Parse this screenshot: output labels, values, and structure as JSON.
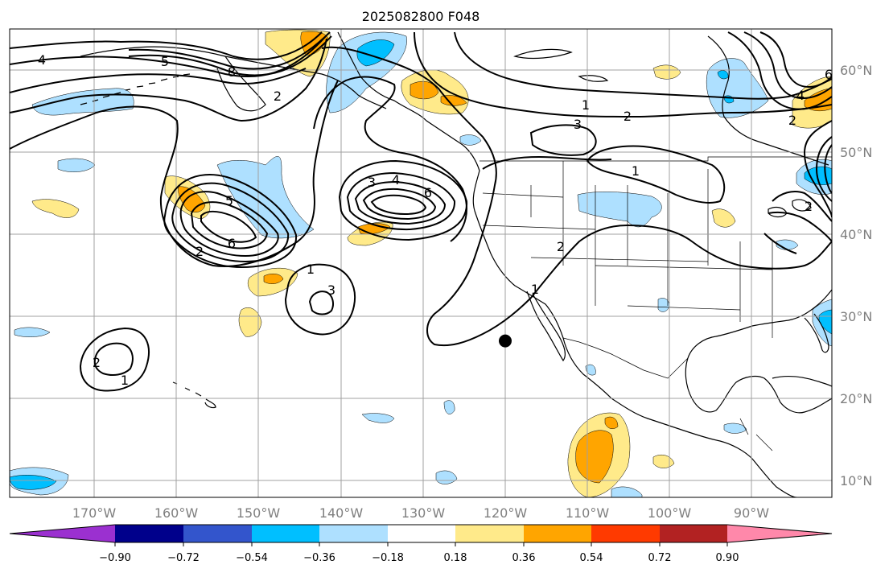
{
  "title": "2025082800 F048",
  "map": {
    "lon_labels": [
      "170°W",
      "160°W",
      "150°W",
      "140°W",
      "130°W",
      "120°W",
      "110°W",
      "100°W",
      "90°W"
    ],
    "lat_labels": [
      "60°N",
      "50°N",
      "40°N",
      "30°N",
      "20°N",
      "10°N"
    ],
    "marker": {
      "name": "storm-center",
      "lon": -120,
      "lat": 27
    },
    "contour_labels": [
      "4",
      "5",
      "8",
      "2",
      "3",
      "4",
      "6",
      "5",
      "6",
      "2",
      "1",
      "3",
      "2",
      "1",
      "1",
      "3",
      "2",
      "1",
      "2",
      "1",
      "2",
      "4",
      "2",
      "6"
    ]
  },
  "colorbar": {
    "ticks": [
      "−0.90",
      "−0.72",
      "−0.54",
      "−0.36",
      "−0.18",
      "0.18",
      "0.36",
      "0.54",
      "0.72",
      "0.90"
    ],
    "colors": {
      "under": "#9b30d0",
      "bins": [
        "#00008b",
        "#3355cc",
        "#00bfff",
        "#aee0ff",
        "#ffffff",
        "#ffea8a",
        "#ffa500",
        "#ff3a00",
        "#b22222",
        "#ff88aa"
      ]
    }
  },
  "shading_colors": {
    "light_blue": "#aee0ff",
    "blue": "#00bfff",
    "yellow": "#ffea8a",
    "orange": "#ffa500"
  }
}
